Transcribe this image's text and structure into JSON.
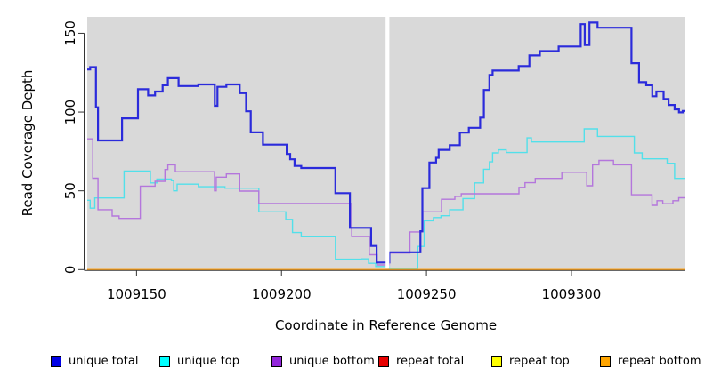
{
  "chart_data": {
    "type": "line",
    "subtype": "step",
    "title": "",
    "xlabel": "Coordinate in Reference Genome",
    "ylabel": "Read Coverage Depth",
    "xlim": [
      1009133,
      1009339
    ],
    "ylim": [
      0,
      160.4
    ],
    "x_ticks": [
      1009150,
      1009200,
      1009250,
      1009300
    ],
    "y_ticks": [
      0,
      50,
      100,
      150
    ],
    "grid": false,
    "plot_bg": "#d9d9d9",
    "axis_color": "#333333",
    "text_color": "#000000",
    "legend_position": "bottom",
    "gap_region": {
      "x_start": 1009235.9,
      "x_end": 1009237.2,
      "color": "#ffffff"
    },
    "series": [
      {
        "name": "unique total",
        "color": "#2b2bdb",
        "legend_color": "#0000e6",
        "line_width": 2.2,
        "points": [
          [
            1009133,
            127
          ],
          [
            1009134,
            128.5
          ],
          [
            1009136,
            103
          ],
          [
            1009136.7,
            82
          ],
          [
            1009145,
            96
          ],
          [
            1009150.5,
            114.5
          ],
          [
            1009154,
            110.5
          ],
          [
            1009156.4,
            113
          ],
          [
            1009159,
            117
          ],
          [
            1009160.8,
            121.5
          ],
          [
            1009164.5,
            116.5
          ],
          [
            1009171.3,
            117.5
          ],
          [
            1009177,
            104
          ],
          [
            1009177.9,
            116
          ],
          [
            1009181,
            117.5
          ],
          [
            1009185.6,
            112
          ],
          [
            1009187.8,
            100.5
          ],
          [
            1009189.4,
            87.1
          ],
          [
            1009193.6,
            79.3
          ],
          [
            1009201.8,
            73.4
          ],
          [
            1009203,
            70
          ],
          [
            1009204.5,
            65.8
          ],
          [
            1009206.8,
            64.5
          ],
          [
            1009218.6,
            48.5
          ],
          [
            1009223.6,
            26.5
          ],
          [
            1009230.9,
            15
          ],
          [
            1009232.8,
            4.5
          ],
          [
            1009237.2,
            11
          ],
          [
            1009247.9,
            24.4
          ],
          [
            1009248.6,
            51.7
          ],
          [
            1009251,
            68
          ],
          [
            1009253.3,
            71
          ],
          [
            1009254.2,
            76
          ],
          [
            1009258,
            79
          ],
          [
            1009261.5,
            87
          ],
          [
            1009264.6,
            90
          ],
          [
            1009268.5,
            96.5
          ],
          [
            1009269.8,
            114
          ],
          [
            1009271.7,
            123.5
          ],
          [
            1009272.8,
            126.3
          ],
          [
            1009281.8,
            129.2
          ],
          [
            1009285.5,
            135.9
          ],
          [
            1009289.1,
            138.7
          ],
          [
            1009295.6,
            141.6
          ],
          [
            1009303.2,
            155.8
          ],
          [
            1009304.6,
            142.5
          ],
          [
            1009306.2,
            156.8
          ],
          [
            1009309,
            153.5
          ],
          [
            1009320.7,
            131
          ],
          [
            1009323.3,
            119
          ],
          [
            1009325.8,
            117
          ],
          [
            1009327.9,
            110
          ],
          [
            1009329.3,
            113
          ],
          [
            1009331.8,
            108.3
          ],
          [
            1009333.5,
            104.5
          ],
          [
            1009335.6,
            101.7
          ],
          [
            1009337.1,
            99.8
          ],
          [
            1009338.4,
            100.7
          ]
        ]
      },
      {
        "name": "unique top",
        "color": "#52e0ea",
        "legend_color": "#00ffff",
        "line_width": 1.4,
        "points": [
          [
            1009133,
            44
          ],
          [
            1009134,
            39
          ],
          [
            1009135.6,
            45.5
          ],
          [
            1009145.7,
            62.5
          ],
          [
            1009154.8,
            55
          ],
          [
            1009157,
            57.5
          ],
          [
            1009162,
            56.4
          ],
          [
            1009162.8,
            50
          ],
          [
            1009164,
            54.2
          ],
          [
            1009171.3,
            52.6
          ],
          [
            1009180.5,
            51.7
          ],
          [
            1009192.2,
            36.7
          ],
          [
            1009201.5,
            31.9
          ],
          [
            1009203.8,
            23.5
          ],
          [
            1009206.8,
            20.9
          ],
          [
            1009218.6,
            6.6
          ],
          [
            1009227.5,
            6.8
          ],
          [
            1009230,
            4
          ],
          [
            1009232.5,
            2
          ],
          [
            1009237.2,
            0.6
          ],
          [
            1009247,
            14.7
          ],
          [
            1009249.2,
            31
          ],
          [
            1009252.4,
            33
          ],
          [
            1009255,
            34.2
          ],
          [
            1009258,
            38
          ],
          [
            1009262.6,
            45.1
          ],
          [
            1009266.6,
            55
          ],
          [
            1009269.7,
            63.7
          ],
          [
            1009271.7,
            68.4
          ],
          [
            1009272.8,
            74.1
          ],
          [
            1009274.8,
            76
          ],
          [
            1009277.5,
            74.3
          ],
          [
            1009284.7,
            83.6
          ],
          [
            1009286.2,
            81
          ],
          [
            1009304.4,
            89.3
          ],
          [
            1009309,
            84.6
          ],
          [
            1009321.7,
            74.1
          ],
          [
            1009324.4,
            70.3
          ],
          [
            1009333,
            67.5
          ],
          [
            1009335.6,
            57.9
          ]
        ]
      },
      {
        "name": "unique bottom",
        "color": "#b476dc",
        "legend_color": "#9326db",
        "line_width": 1.4,
        "points": [
          [
            1009133,
            83
          ],
          [
            1009134.9,
            58
          ],
          [
            1009136.7,
            38
          ],
          [
            1009141.6,
            34
          ],
          [
            1009144,
            32.5
          ],
          [
            1009151.3,
            53
          ],
          [
            1009156.4,
            56
          ],
          [
            1009159.8,
            63.5
          ],
          [
            1009160.8,
            66.5
          ],
          [
            1009163.4,
            62.1
          ],
          [
            1009176.9,
            50
          ],
          [
            1009177.5,
            58.7
          ],
          [
            1009181,
            60.7
          ],
          [
            1009185.6,
            49.8
          ],
          [
            1009192.2,
            41.9
          ],
          [
            1009224.2,
            21
          ],
          [
            1009230.3,
            9.5
          ],
          [
            1009233,
            3
          ],
          [
            1009237.2,
            10.5
          ],
          [
            1009244.3,
            23.9
          ],
          [
            1009248.7,
            36.7
          ],
          [
            1009255.2,
            44.6
          ],
          [
            1009259.8,
            46.5
          ],
          [
            1009262,
            48.1
          ],
          [
            1009281.9,
            52.2
          ],
          [
            1009284,
            55.1
          ],
          [
            1009287.5,
            57.9
          ],
          [
            1009296.7,
            61.8
          ],
          [
            1009305.3,
            53.2
          ],
          [
            1009307.3,
            66.5
          ],
          [
            1009309.5,
            69.3
          ],
          [
            1009314.5,
            66.5
          ],
          [
            1009320.7,
            47.5
          ],
          [
            1009327.8,
            40.8
          ],
          [
            1009329.5,
            43.7
          ],
          [
            1009331.5,
            41.8
          ],
          [
            1009335,
            43.7
          ],
          [
            1009337,
            45.6
          ]
        ]
      },
      {
        "name": "repeat total",
        "color": "#e80000",
        "legend_color": "#e80000",
        "line_width": 1.4,
        "points": [
          [
            1009133,
            0
          ],
          [
            1009339,
            0
          ]
        ]
      },
      {
        "name": "repeat top",
        "color": "#ffff00",
        "legend_color": "#ffff00",
        "line_width": 1.4,
        "points": [
          [
            1009133,
            0
          ],
          [
            1009339,
            0
          ]
        ]
      },
      {
        "name": "repeat bottom",
        "color": "#ffa31a",
        "legend_color": "#ffa500",
        "line_width": 1.6,
        "points": [
          [
            1009133,
            0
          ],
          [
            1009339,
            0
          ]
        ]
      }
    ]
  }
}
